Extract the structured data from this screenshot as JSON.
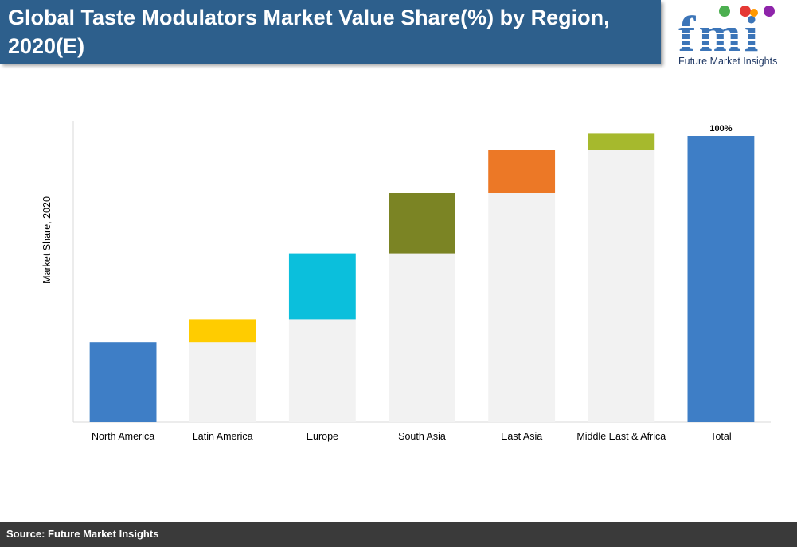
{
  "header": {
    "title": "Global Taste Modulators Market Value Share(%) by Region, 2020(E)"
  },
  "logo": {
    "letters": "fmi",
    "caption": "Future Market Insights"
  },
  "footer": {
    "source": "Source: Future Market Insights"
  },
  "colors": {
    "title_bg": "#2d5f8c",
    "footer_bg": "#3a3a3a",
    "base_fill": "#f2f2f2"
  },
  "chart_data": {
    "type": "bar",
    "subtype": "waterfall",
    "title": "",
    "xlabel": "",
    "ylabel": "Market Share, 2020",
    "ylim": [
      0,
      100
    ],
    "grid": false,
    "categories": [
      "North America",
      "Latin America",
      "Europe",
      "South Asia",
      "East Asia",
      "Middle East & Africa",
      "Total"
    ],
    "values": [
      28,
      8,
      23,
      21,
      15,
      6,
      100
    ],
    "bases": [
      0,
      28,
      36,
      59,
      80,
      95,
      0
    ],
    "colors": [
      "#3e7ec6",
      "#ffcc00",
      "#0bbfdc",
      "#7b8424",
      "#ec7826",
      "#a6b92d",
      "#3e7ec6"
    ],
    "data_labels": [
      "",
      "",
      "",
      "",
      "",
      "",
      "100%"
    ]
  }
}
